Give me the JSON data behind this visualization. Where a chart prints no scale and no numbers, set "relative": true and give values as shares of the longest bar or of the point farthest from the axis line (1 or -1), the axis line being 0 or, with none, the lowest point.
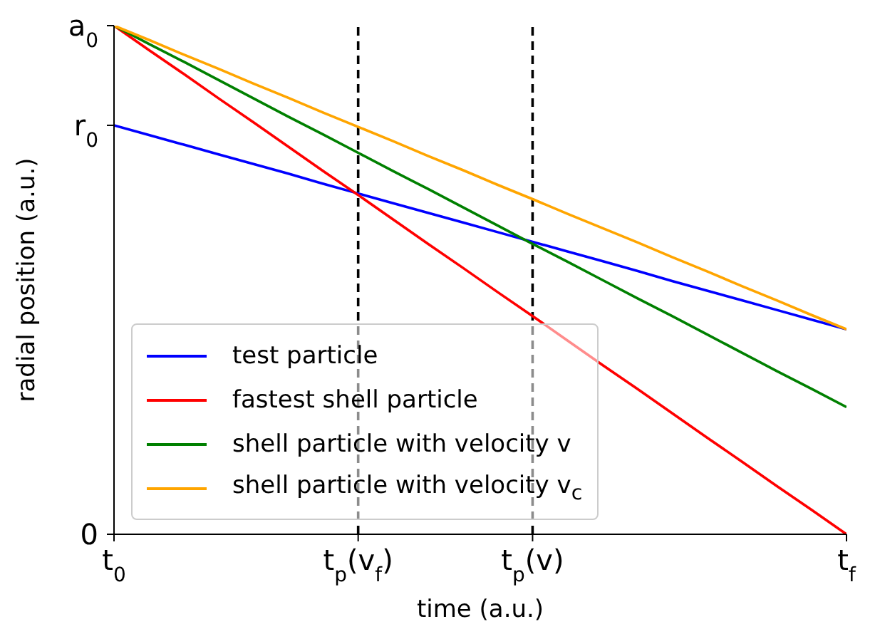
{
  "chart_data": {
    "type": "line",
    "relative": true,
    "xlabel": "time (a.u.)",
    "ylabel": "radial position (a.u.)",
    "categories": [
      "t$_{0}$",
      null,
      null,
      null,
      null,
      null,
      null,
      "t$_{p}$(v$_{f}$)",
      null,
      null,
      null,
      null,
      "t$_{p}$(v)",
      null,
      null,
      null,
      null,
      null,
      null,
      null,
      null,
      "t$_{f}$"
    ],
    "series": [
      {
        "name": "test particle",
        "color": "#0000ff",
        "values": [
          0.804,
          0.785,
          0.766,
          0.747,
          0.728,
          0.709,
          0.689,
          0.67,
          0.651,
          0.632,
          0.613,
          0.594,
          0.575,
          0.556,
          0.537,
          0.518,
          0.498,
          0.479,
          0.46,
          0.441,
          0.422,
          0.403
        ]
      },
      {
        "name": "fastest shell particle",
        "color": "#ff0000",
        "values": [
          1,
          0.952,
          0.905,
          0.857,
          0.81,
          0.762,
          0.714,
          0.667,
          0.619,
          0.571,
          0.524,
          0.476,
          0.429,
          0.381,
          0.333,
          0.286,
          0.238,
          0.19,
          0.143,
          0.095,
          0.048,
          0
        ]
      },
      {
        "name": "shell particle with velocity v",
        "color": "#008000",
        "values": [
          1,
          0.964,
          0.929,
          0.893,
          0.857,
          0.821,
          0.786,
          0.75,
          0.714,
          0.679,
          0.643,
          0.607,
          0.571,
          0.536,
          0.5,
          0.464,
          0.429,
          0.393,
          0.357,
          0.321,
          0.286,
          0.25
        ]
      },
      {
        "name": "shell particle with velocity v$_{c}$",
        "color": "#ffa500",
        "values": [
          1,
          0.972,
          0.943,
          0.915,
          0.886,
          0.858,
          0.829,
          0.801,
          0.773,
          0.744,
          0.716,
          0.687,
          0.659,
          0.63,
          0.602,
          0.574,
          0.545,
          0.517,
          0.488,
          0.46,
          0.431,
          0.403
        ]
      }
    ],
    "annotations": [
      {
        "text": "a$_{0}$",
        "x": "t$_{0}$",
        "y": 1
      },
      {
        "text": "r$_{0}$",
        "x": "t$_{0}$",
        "y": 0.804
      },
      "0"
    ],
    "ref_lines": [
      {
        "axis": "x",
        "value": "t$_{p}$(v$_{f}$)",
        "color": "#000000",
        "line_style": "dashed"
      },
      {
        "axis": "x",
        "value": "t$_{p}$(v)",
        "color": "#000000",
        "line_style": "dashed"
      }
    ],
    "legend": "bottom left",
    "marker": "none",
    "line_style": "solid"
  }
}
